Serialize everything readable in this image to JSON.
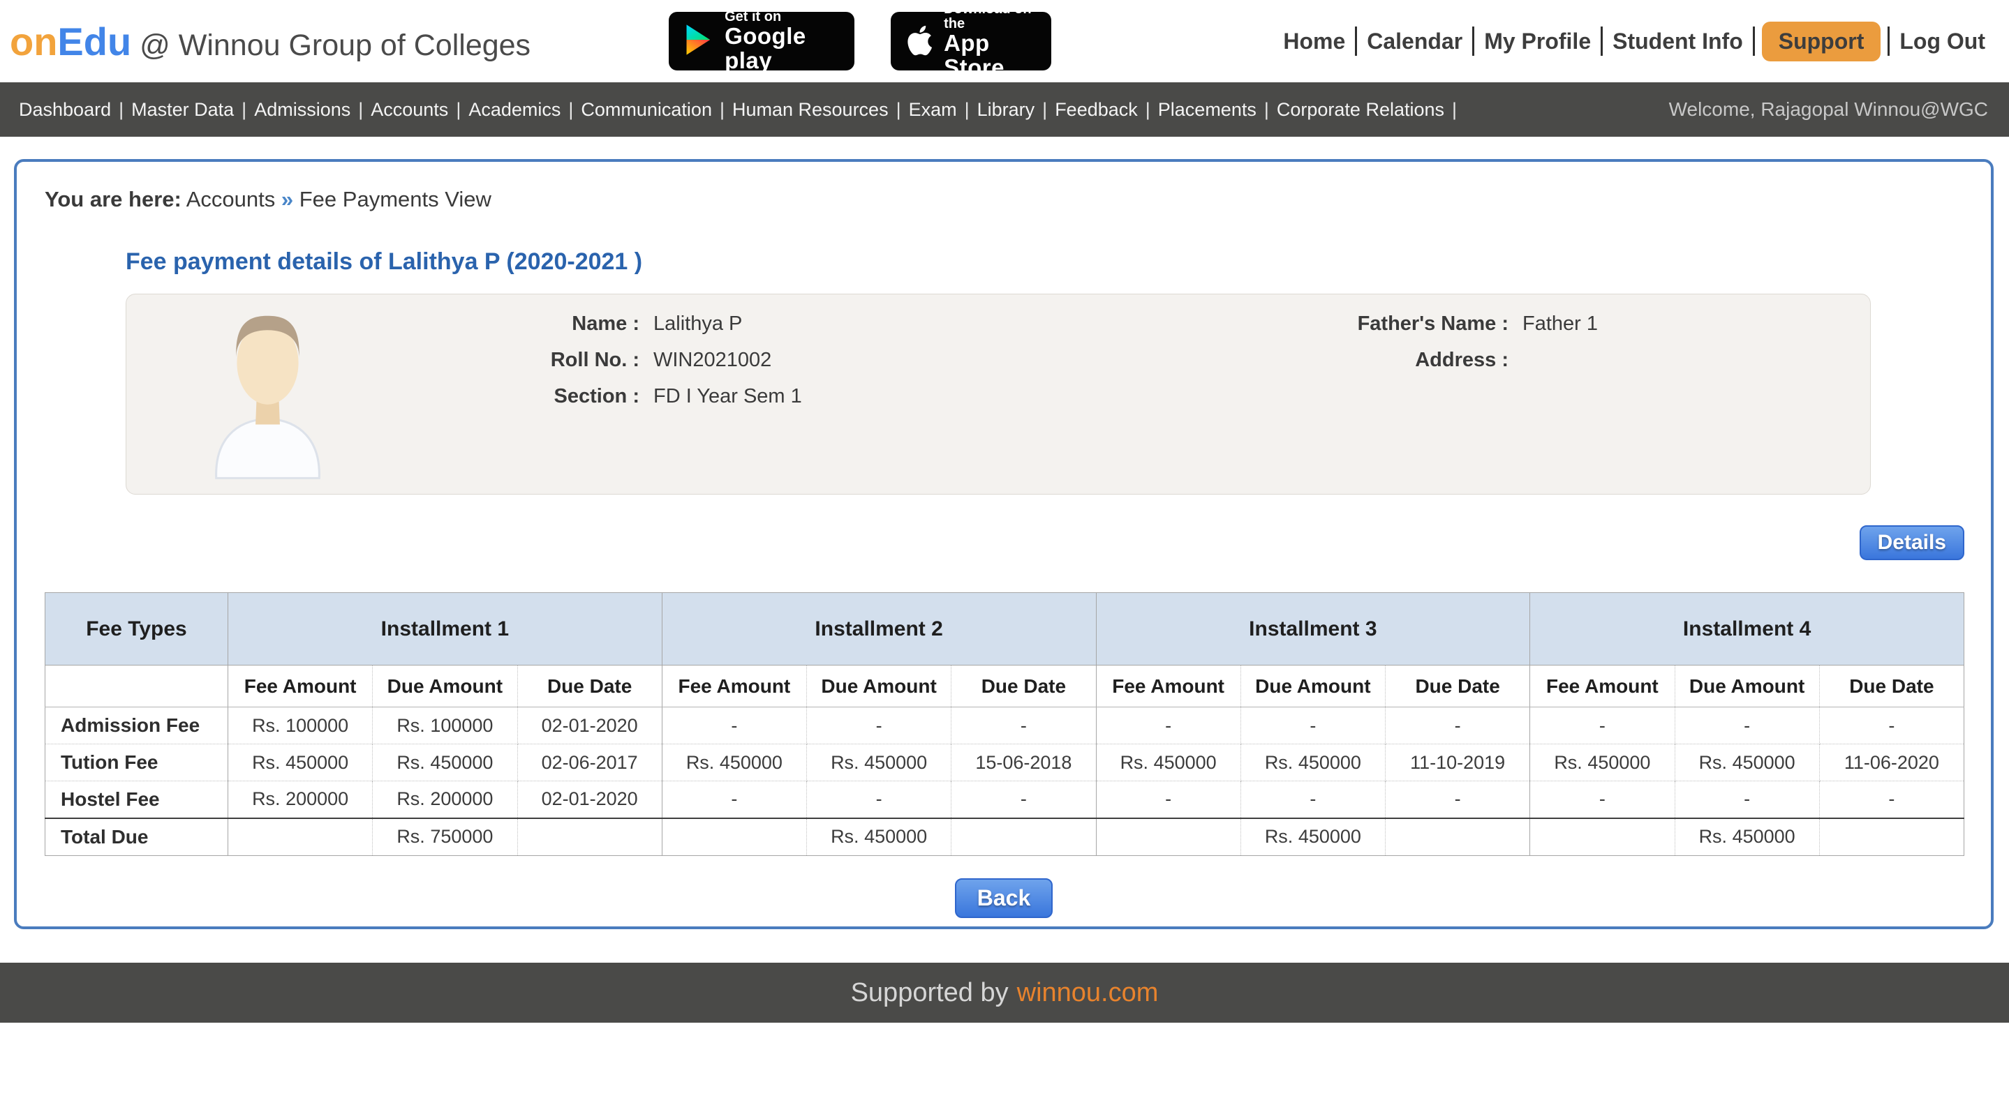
{
  "colors": {
    "logo_orange": "#f2a33c",
    "logo_blue": "#4285e8",
    "nav_bg": "#4a4a48",
    "support_bg": "#eb9c3e",
    "panel_border": "#4a7cbe",
    "title_blue": "#2a63ad",
    "breadcrumb_arrow": "#4a86c8",
    "card_bg": "#f4f2ef",
    "table_header_bg": "#d3dfed",
    "button_top": "#6fa3ec",
    "button_bottom": "#3a76dc",
    "button_border": "#2f66cc",
    "footer_link": "#e8832d"
  },
  "header": {
    "logo": {
      "part1": "on",
      "part2": "Edu",
      "suffix": " @ Winnou Group of Colleges"
    },
    "google_play": {
      "line1": "Get it on",
      "line2": "Google play"
    },
    "app_store": {
      "line1": "Download on the",
      "line2": "App Store"
    },
    "links": [
      {
        "label": "Home"
      },
      {
        "label": "Calendar"
      },
      {
        "label": "My Profile"
      },
      {
        "label": "Student Info"
      },
      {
        "label": "Support",
        "highlight": true
      },
      {
        "label": "Log Out"
      }
    ]
  },
  "nav": {
    "items": [
      "Dashboard",
      "Master Data",
      "Admissions",
      "Accounts",
      "Academics",
      "Communication",
      "Human Resources",
      "Exam",
      "Library",
      "Feedback",
      "Placements",
      "Corporate Relations"
    ],
    "welcome": "Welcome, Rajagopal Winnou@WGC"
  },
  "breadcrumb": {
    "prefix": "You are here:",
    "section": "Accounts",
    "arrow": "»",
    "page": "Fee Payments View"
  },
  "page": {
    "title": "Fee payment details of Lalithya P (2020-2021 )"
  },
  "student": {
    "name_label": "Name :",
    "name": "Lalithya P",
    "roll_label": "Roll No. :",
    "roll": "WIN2021002",
    "section_label": "Section :",
    "section": "FD I Year Sem 1",
    "father_label": "Father's Name :",
    "father": "Father 1",
    "address_label": "Address :",
    "address": ""
  },
  "buttons": {
    "details": "Details",
    "back": "Back"
  },
  "table": {
    "fee_types_header": "Fee Types",
    "installments": [
      "Installment 1",
      "Installment 2",
      "Installment 3",
      "Installment 4"
    ],
    "sub_headers": [
      "Fee Amount",
      "Due Amount",
      "Due Date"
    ],
    "rows": [
      {
        "fee_type": "Admission Fee",
        "cells": [
          "Rs. 100000",
          "Rs. 100000",
          "02-01-2020",
          "-",
          "-",
          "-",
          "-",
          "-",
          "-",
          "-",
          "-",
          "-"
        ]
      },
      {
        "fee_type": "Tution Fee",
        "cells": [
          "Rs. 450000",
          "Rs. 450000",
          "02-06-2017",
          "Rs. 450000",
          "Rs. 450000",
          "15-06-2018",
          "Rs. 450000",
          "Rs. 450000",
          "11-10-2019",
          "Rs. 450000",
          "Rs. 450000",
          "11-06-2020"
        ]
      },
      {
        "fee_type": "Hostel Fee",
        "cells": [
          "Rs. 200000",
          "Rs. 200000",
          "02-01-2020",
          "-",
          "-",
          "-",
          "-",
          "-",
          "-",
          "-",
          "-",
          "-"
        ]
      }
    ],
    "total_row": {
      "fee_type": "Total Due",
      "cells": [
        "",
        "Rs. 750000",
        "",
        "",
        "Rs. 450000",
        "",
        "",
        "Rs. 450000",
        "",
        "",
        "Rs. 450000",
        ""
      ]
    }
  },
  "footer": {
    "prefix": "Supported by",
    "link": "winnou.com"
  }
}
